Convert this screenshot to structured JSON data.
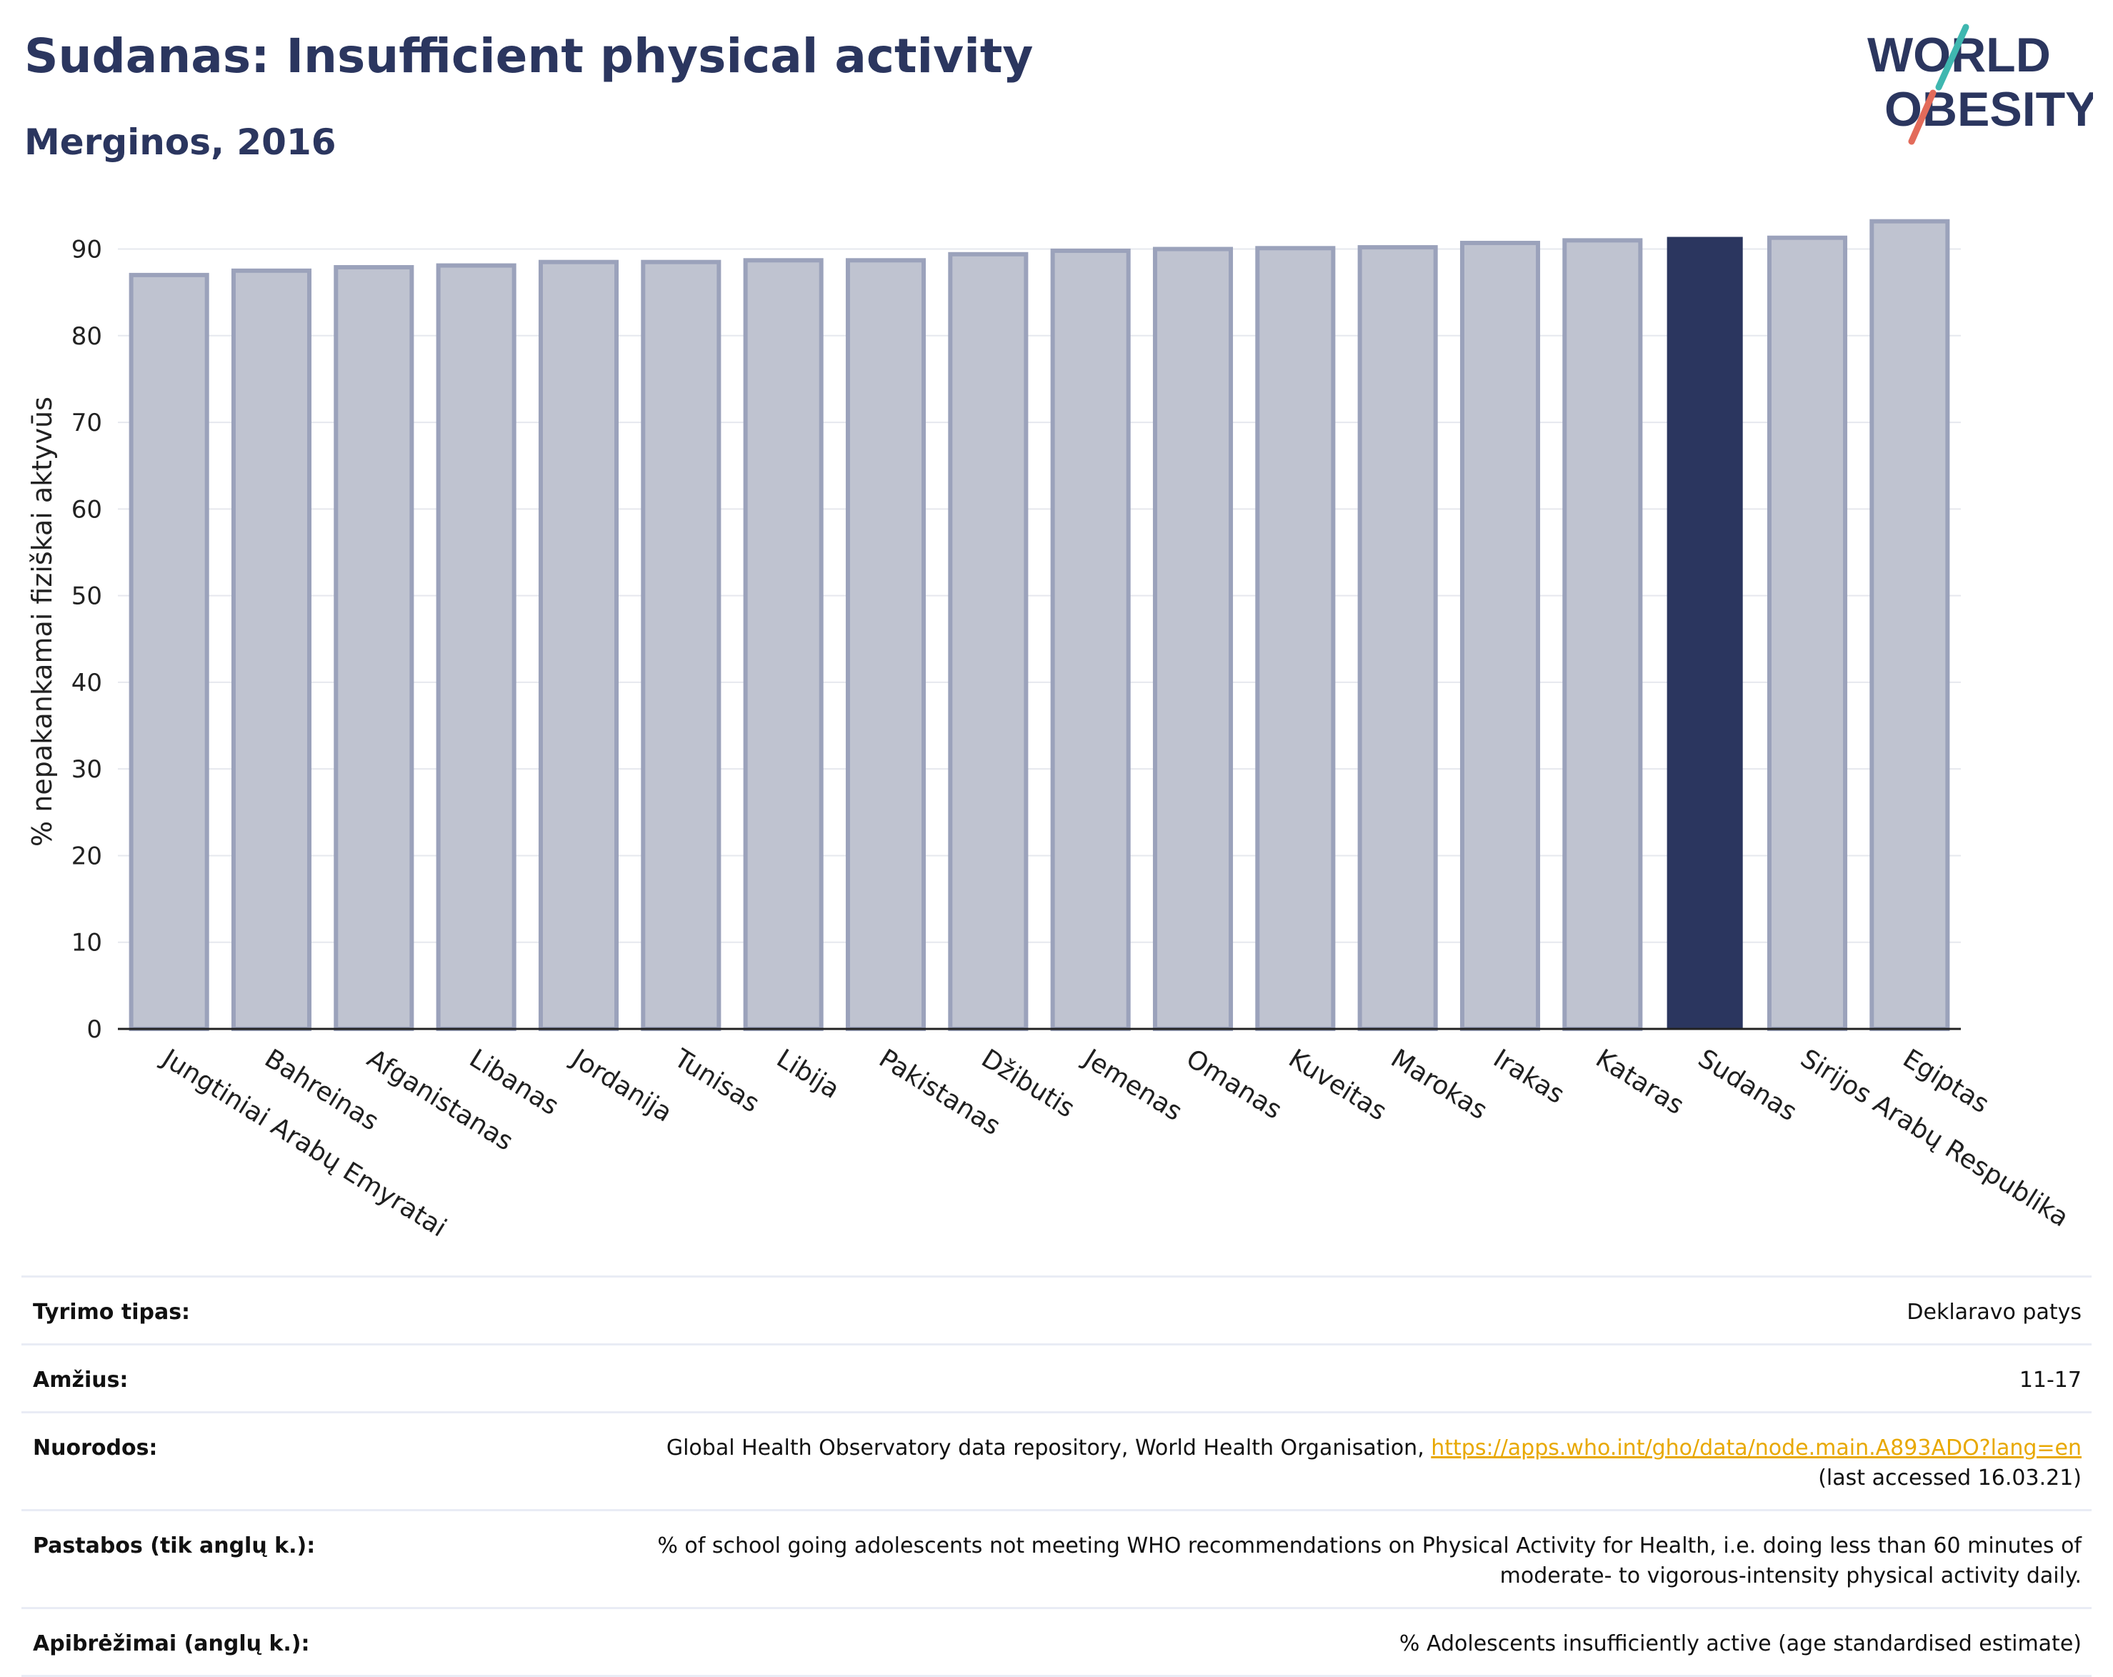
{
  "header": {
    "title": "Sudanas: Insufficient physical activity",
    "subtitle": "Merginos, 2016"
  },
  "logo": {
    "line1": "WORLD",
    "line2": "OBESITY"
  },
  "colors": {
    "bar": "#bfc3d0",
    "bar_stroke": "#9ba2bb",
    "highlight": "#2b365f",
    "title": "#2b365f",
    "link": "#e8a800"
  },
  "chart_data": {
    "type": "bar",
    "title": "Sudanas: Insufficient physical activity",
    "subtitle": "Merginos, 2016",
    "xlabel": "",
    "ylabel": "% nepakankamai fiziškai aktyvūs",
    "ylim": [
      0,
      94
    ],
    "yticks": [
      0,
      10,
      20,
      30,
      40,
      50,
      60,
      70,
      80,
      90
    ],
    "grid": true,
    "highlight": "Sudanas",
    "categories": [
      "Jungtiniai Arabų Emyratai",
      "Bahreinas",
      "Afganistanas",
      "Libanas",
      "Jordanija",
      "Tunisas",
      "Libija",
      "Pakistanas",
      "Džibutis",
      "Jemenas",
      "Omanas",
      "Kuveitas",
      "Marokas",
      "Irakas",
      "Kataras",
      "Sudanas",
      "Sirijos Arabų Respublika",
      "Egiptas"
    ],
    "values": [
      87.0,
      87.5,
      87.9,
      88.1,
      88.5,
      88.5,
      88.7,
      88.7,
      89.4,
      89.8,
      90.0,
      90.1,
      90.2,
      90.7,
      91.0,
      91.4,
      91.3,
      93.2
    ]
  },
  "info": {
    "rows": [
      {
        "label": "Tyrimo tipas:",
        "value": "Deklaravo patys"
      },
      {
        "label": "Amžius:",
        "value": "11-17"
      },
      {
        "label": "Nuorodos:",
        "value": "Global Health Observatory data repository, World Health Organisation, ",
        "link": "https://apps.who.int/gho/data/node.main.A893ADO?lang=en",
        "note": "(last accessed 16.03.21)"
      },
      {
        "label": "Pastabos (tik anglų k.):",
        "value": "% of school going adolescents not meeting WHO recommendations on Physical Activity for Health, i.e. doing less than 60 minutes of moderate- to vigorous-intensity physical activity daily."
      },
      {
        "label": "Apibrėžimai (anglų k.):",
        "value": "% Adolescents insufficiently active (age standardised estimate)"
      }
    ]
  }
}
